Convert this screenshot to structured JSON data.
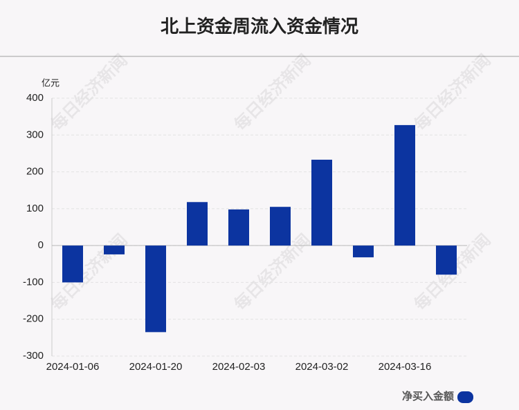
{
  "chart_data": {
    "type": "bar",
    "title": "北上资金周流入资金情况",
    "y_unit": "亿元",
    "categories": [
      "2024-01-06",
      null,
      "2024-01-20",
      null,
      "2024-02-03",
      null,
      "2024-03-02",
      null,
      "2024-03-16",
      null
    ],
    "series": [
      {
        "name": "净买入金额",
        "color": "#0c34a0",
        "values": [
          -100,
          -24,
          -235,
          118,
          98,
          105,
          233,
          -32,
          327,
          -79
        ]
      }
    ],
    "ylim": [
      -300,
      400
    ],
    "yticks": [
      -300,
      -200,
      -100,
      0,
      100,
      200,
      300,
      400
    ],
    "grid": true,
    "watermark": "每日经济新闻"
  }
}
